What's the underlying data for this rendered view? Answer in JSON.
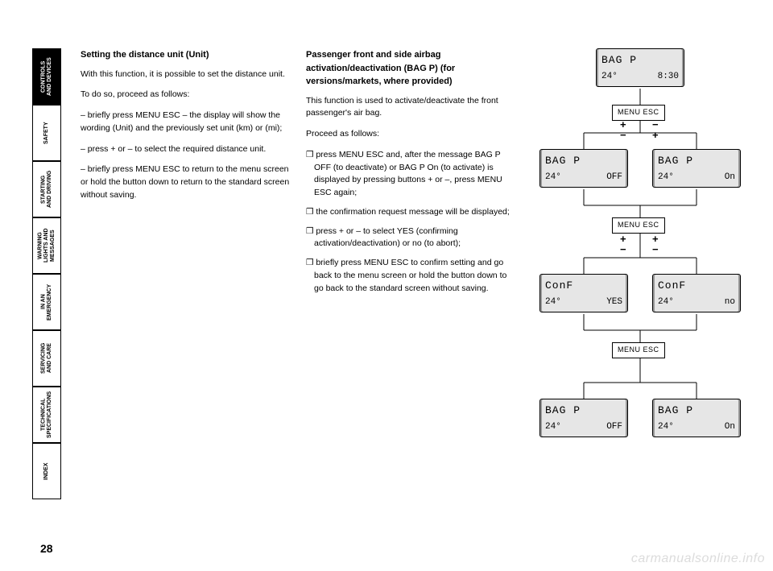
{
  "tabs": [
    {
      "label": "CONTROLS\nAND DEVICES",
      "active": true
    },
    {
      "label": "SAFETY",
      "active": false
    },
    {
      "label": "STARTING\nAND DRIVING",
      "active": false
    },
    {
      "label": "WARNING\nLIGHTS AND\nMESSAGES",
      "active": false
    },
    {
      "label": "IN AN\nEMERGENCY",
      "active": false
    },
    {
      "label": "SERVICING\nAND CARE",
      "active": false
    },
    {
      "label": "TECHNICAL\nSPECIFICATIONS",
      "active": false
    },
    {
      "label": "INDEX",
      "active": false
    }
  ],
  "page_number": "28",
  "col1": {
    "h": "Setting the distance unit (Unit)",
    "p1": "With this function, it is possible to set the distance unit.",
    "p2": "To do so, proceed as follows:",
    "p3": "– briefly press MENU ESC – the display will show the wording (Unit) and the previously set unit (km) or (mi);",
    "p4": "– press + or – to select the required distance unit.",
    "p5": "– briefly press MENU ESC to return to the menu screen or hold the button down to return to the standard screen without saving."
  },
  "col2": {
    "h": "Passenger front and side airbag activation/deactivation (BAG P) (for versions/markets, where provided)",
    "p1": "This function is used to activate/deactivate the front passenger's air bag.",
    "p2": "Proceed as follows:",
    "b1": "❒ press MENU ESC and, after the message BAG P OFF (to deactivate) or BAG P On (to activate) is displayed by pressing buttons + or –, press MENU ESC again;",
    "b2": "❒ the confirmation request message will be displayed;",
    "b3": "❒ press + or – to select YES (confirming activation/deactivation) or no (to abort);",
    "b4": "❒ briefly press MENU ESC to confirm setting and go back to the menu screen or hold the button down to go back to the standard screen without saving."
  },
  "diagram": {
    "menuesc": "MENU ESC",
    "screens": {
      "top": {
        "l1": "BAG P",
        "l2a": "24°",
        "l2b": "8:30"
      },
      "row2l": {
        "l1": "BAG P",
        "l2a": "24°",
        "l2b": "OFF"
      },
      "row2r": {
        "l1": "BAG P",
        "l2a": "24°",
        "l2b": "On"
      },
      "row3l": {
        "l1": "ConF",
        "l2a": "24°",
        "l2b": "YES"
      },
      "row3r": {
        "l1": "ConF",
        "l2a": "24°",
        "l2b": "no"
      },
      "row4l": {
        "l1": "BAG P",
        "l2a": "24°",
        "l2b": "OFF"
      },
      "row4r": {
        "l1": "BAG P",
        "l2a": "24°",
        "l2b": "On"
      }
    },
    "style": {
      "screen_bg": "#e6e6e6",
      "line_color": "#000000"
    }
  },
  "watermark": "carmanualsonline.info"
}
